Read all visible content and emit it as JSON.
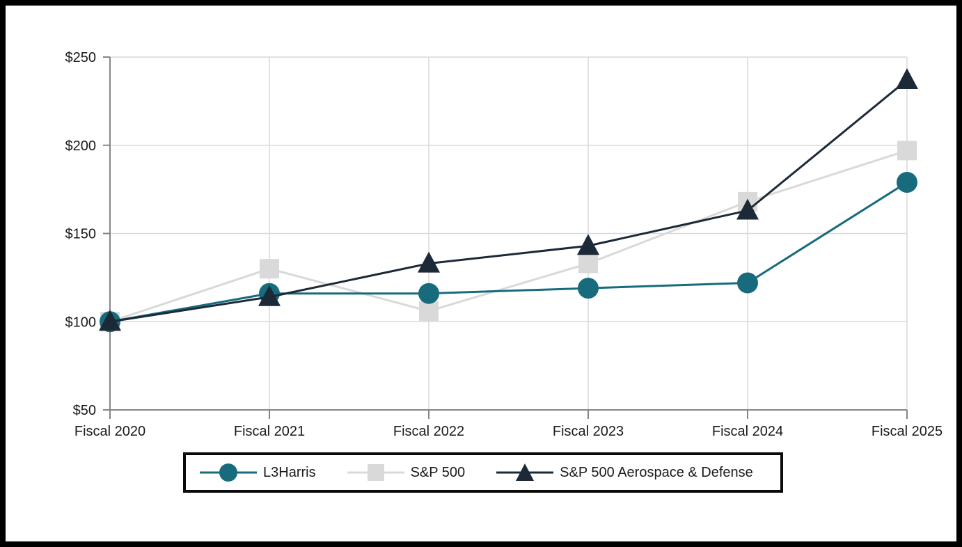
{
  "chart_data": {
    "type": "line",
    "title": "",
    "xlabel": "",
    "ylabel": "",
    "categories": [
      "Fiscal 2020",
      "Fiscal 2021",
      "Fiscal 2022",
      "Fiscal 2023",
      "Fiscal 2024",
      "Fiscal 2025"
    ],
    "series": [
      {
        "name": "L3Harris",
        "marker": "circle",
        "color": "#176B7C",
        "values": [
          100,
          116,
          116,
          119,
          122,
          179
        ]
      },
      {
        "name": "S&P 500",
        "marker": "square",
        "color": "#D9D9D9",
        "values": [
          100,
          130,
          106,
          133,
          168,
          197
        ]
      },
      {
        "name": "S&P 500 Aerospace & Defense",
        "marker": "triangle",
        "color": "#1C2936",
        "values": [
          100,
          114,
          133,
          143,
          163,
          237
        ]
      }
    ],
    "draw_order": [
      1,
      0,
      2
    ],
    "ylim": [
      50,
      250
    ],
    "yticks": [
      50,
      100,
      150,
      200,
      250
    ],
    "ytick_prefix": "$",
    "grid": true,
    "legend_position": "bottom",
    "colors": {
      "axis": "#858585",
      "gridline": "#D9D9D9",
      "tick_text": "#1a1a1a",
      "frame_border": "#000000",
      "background": "#ffffff"
    }
  }
}
